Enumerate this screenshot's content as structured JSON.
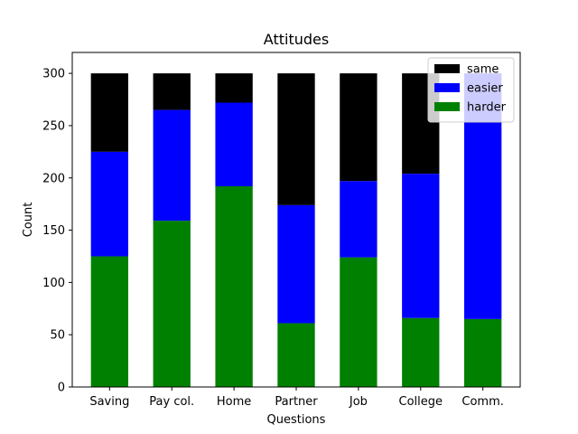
{
  "chart_data": {
    "type": "bar",
    "stacked": true,
    "title": "Attitudes",
    "xlabel": "Questions",
    "ylabel": "Count",
    "ylim": [
      0,
      320
    ],
    "yticks": [
      0,
      50,
      100,
      150,
      200,
      250,
      300
    ],
    "grid": false,
    "legend_position": "top-right",
    "categories": [
      "Saving",
      "Pay col.",
      "Home",
      "Partner",
      "Job",
      "College",
      "Comm."
    ],
    "series": [
      {
        "name": "harder",
        "color": "#008000",
        "values": [
          125,
          159,
          192,
          61,
          124,
          66,
          65
        ]
      },
      {
        "name": "easier",
        "color": "#0000ff",
        "values": [
          100,
          106,
          80,
          113,
          73,
          138,
          235
        ]
      },
      {
        "name": "same",
        "color": "#000000",
        "values": [
          75,
          35,
          28,
          126,
          103,
          96,
          0
        ]
      }
    ],
    "legend_order": [
      "same",
      "easier",
      "harder"
    ]
  }
}
